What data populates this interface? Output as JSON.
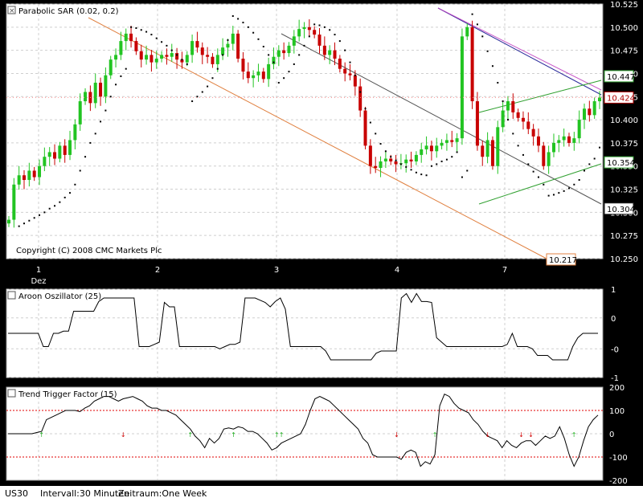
{
  "chart_data": [
    {
      "type": "candlestick",
      "title": "Parabolic SAR (0.02, 0.2)",
      "instrument": "US30",
      "copyright": "Copyright (C) 2008 CMC Markets Plc",
      "x_labels": [
        "1",
        "2",
        "3",
        "4",
        "7"
      ],
      "x_sublabel": "Dez",
      "y_ticks": [
        "10.525",
        "10.500",
        "10.475",
        "10.450",
        "10.425",
        "10.400",
        "10.375",
        "10.350",
        "10.325",
        "10.300",
        "10.275",
        "10.250"
      ],
      "ylim": [
        10.25,
        10.525
      ],
      "price_tags": [
        "10.447",
        "10.424",
        "10.354",
        "10.304",
        "10.217"
      ],
      "colors": {
        "up": "#22c422",
        "down": "#c80000",
        "sar": "#000000",
        "grid": "#bbbbbb",
        "last": "#b00000"
      },
      "closes": [
        10.292,
        10.33,
        10.34,
        10.335,
        10.345,
        10.338,
        10.35,
        10.36,
        10.365,
        10.358,
        10.372,
        10.362,
        10.378,
        10.395,
        10.42,
        10.43,
        10.418,
        10.44,
        10.425,
        10.448,
        10.465,
        10.47,
        10.485,
        10.493,
        10.485,
        10.474,
        10.465,
        10.47,
        10.462,
        10.466,
        10.47,
        10.468,
        10.472,
        10.465,
        10.462,
        10.47,
        10.485,
        10.478,
        10.47,
        10.468,
        10.46,
        10.47,
        10.478,
        10.482,
        10.493,
        10.466,
        10.452,
        10.445,
        10.448,
        10.452,
        10.444,
        10.46,
        10.468,
        10.475,
        10.472,
        10.48,
        10.49,
        10.498,
        10.5,
        10.497,
        10.492,
        10.48,
        10.47,
        10.475,
        10.466,
        10.455,
        10.45,
        10.448,
        10.436,
        10.41,
        10.372,
        10.35,
        10.348,
        10.355,
        10.358,
        10.355,
        10.352,
        10.353,
        10.357,
        10.355,
        10.362,
        10.368,
        10.372,
        10.366,
        10.372,
        10.375,
        10.378,
        10.376,
        10.38,
        10.49,
        10.5,
        10.42,
        10.372,
        10.36,
        10.378,
        10.35,
        10.392,
        10.41,
        10.42,
        10.408,
        10.402,
        10.398,
        10.39,
        10.382,
        10.372,
        10.35,
        10.365,
        10.375,
        10.378,
        10.382,
        10.375,
        10.38,
        10.4,
        10.412,
        10.405,
        10.42,
        10.424
      ],
      "sar": [
        null,
        null,
        10.285,
        10.288,
        10.291,
        10.294,
        10.297,
        10.3,
        10.304,
        10.307,
        10.311,
        10.316,
        10.321,
        10.33,
        10.345,
        10.36,
        10.375,
        10.385,
        10.398,
        10.41,
        10.425,
        10.438,
        10.447,
        10.455,
        10.5,
        10.499,
        10.497,
        10.495,
        10.492,
        10.488,
        10.484,
        10.48,
        10.475,
        10.47,
        10.465,
        10.46,
        10.42,
        10.425,
        10.43,
        10.436,
        10.445,
        10.455,
        10.47,
        10.486,
        10.512,
        10.509,
        10.505,
        10.5,
        10.494,
        10.487,
        10.479,
        10.47,
        10.462,
        10.44,
        10.445,
        10.452,
        10.46,
        10.47,
        10.48,
        10.49,
        10.503,
        10.502,
        10.5,
        10.497,
        10.492,
        10.485,
        10.475,
        10.462,
        10.448,
        10.43,
        10.412,
        10.397,
        10.385,
        10.374,
        10.366,
        10.36,
        10.356,
        10.352,
        10.349,
        10.346,
        10.343,
        10.341,
        10.34,
        10.35,
        10.352,
        10.355,
        10.357,
        10.36,
        10.365,
        10.338,
        10.345,
        10.514,
        10.503,
        10.49,
        10.474,
        10.458,
        10.44,
        10.42,
        10.4,
        10.385,
        10.372,
        10.362,
        10.352,
        10.344,
        10.338,
        10.33,
        10.318,
        10.319,
        10.321,
        10.323,
        10.326,
        10.33,
        10.335,
        10.345,
        10.352,
        10.358,
        10.37
      ],
      "sar_colors_note": "dotted black",
      "trendlines_color": [
        "#e08040",
        "#555555",
        "#2a2a9a",
        "#c040c0",
        "#30a030"
      ]
    },
    {
      "type": "line",
      "title": "Aroon Oszillator (25)",
      "y_ticks": [
        "1",
        "0",
        "-0",
        "-1"
      ],
      "ylim": [
        -1,
        1
      ],
      "values": [
        0,
        0,
        0,
        0,
        0,
        0,
        0,
        -0.3,
        -0.3,
        0,
        0,
        0.05,
        0.05,
        0.5,
        0.5,
        0.5,
        0.5,
        0.5,
        0.72,
        0.8,
        0.8,
        0.8,
        0.8,
        0.8,
        0.8,
        0.8,
        -0.3,
        -0.3,
        -0.3,
        -0.25,
        -0.2,
        0.7,
        0.6,
        0.6,
        -0.3,
        -0.3,
        -0.3,
        -0.3,
        -0.3,
        -0.3,
        -0.3,
        -0.3,
        -0.35,
        -0.3,
        -0.25,
        -0.25,
        -0.2,
        0.8,
        0.8,
        0.8,
        0.75,
        0.7,
        0.6,
        0.72,
        0.8,
        0.55,
        -0.3,
        -0.3,
        -0.3,
        -0.3,
        -0.3,
        -0.3,
        -0.3,
        -0.4,
        -0.6,
        -0.6,
        -0.6,
        -0.6,
        -0.6,
        -0.6,
        -0.6,
        -0.6,
        -0.6,
        -0.45,
        -0.4,
        -0.4,
        -0.4,
        -0.4,
        0.8,
        0.9,
        0.7,
        0.9,
        0.72,
        0.72,
        0.7,
        -0.1,
        -0.2,
        -0.3,
        -0.3,
        -0.3,
        -0.3,
        -0.3,
        -0.3,
        -0.3,
        -0.3,
        -0.3,
        -0.3,
        -0.3,
        -0.3,
        -0.25,
        0.0,
        -0.3,
        -0.3,
        -0.3,
        -0.35,
        -0.5,
        -0.5,
        -0.5,
        -0.6,
        -0.6,
        -0.6,
        -0.6,
        -0.3,
        -0.1,
        0.0,
        0.0,
        0.0,
        0.0
      ]
    },
    {
      "type": "line",
      "title": "Trend Trigger Factor (15)",
      "y_ticks": [
        "200",
        "100",
        "0",
        "-100",
        "-200"
      ],
      "ylim": [
        -200,
        200
      ],
      "levels": [
        100,
        -100
      ],
      "values": [
        0,
        0,
        0,
        0,
        0,
        0,
        5,
        10,
        60,
        70,
        80,
        90,
        100,
        100,
        100,
        95,
        110,
        120,
        140,
        150,
        160,
        160,
        150,
        140,
        150,
        155,
        160,
        150,
        140,
        120,
        110,
        110,
        100,
        100,
        90,
        80,
        60,
        40,
        20,
        -10,
        -30,
        -60,
        -20,
        -40,
        -20,
        20,
        25,
        20,
        30,
        25,
        10,
        10,
        0,
        -20,
        -40,
        -70,
        -60,
        -40,
        -30,
        -20,
        -10,
        0,
        40,
        100,
        150,
        160,
        150,
        140,
        120,
        100,
        80,
        60,
        40,
        20,
        -20,
        -40,
        -90,
        -100,
        -100,
        -100,
        -100,
        -100,
        -110,
        -80,
        -70,
        -80,
        -140,
        -120,
        -130,
        -90,
        120,
        170,
        160,
        130,
        110,
        100,
        90,
        60,
        40,
        10,
        -10,
        -20,
        -30,
        -60,
        -30,
        -50,
        -60,
        -40,
        -30,
        -30,
        -50,
        -30,
        -10,
        -20,
        -10,
        30,
        -20,
        -90,
        -140,
        -100,
        -30,
        30,
        60,
        80
      ],
      "signals": [
        {
          "i": 7,
          "dir": "up"
        },
        {
          "i": 24,
          "dir": "down"
        },
        {
          "i": 38,
          "dir": "up"
        },
        {
          "i": 47,
          "dir": "up"
        },
        {
          "i": 56,
          "dir": "up"
        },
        {
          "i": 57,
          "dir": "up"
        },
        {
          "i": 81,
          "dir": "down"
        },
        {
          "i": 89,
          "dir": "up"
        },
        {
          "i": 100,
          "dir": "down"
        },
        {
          "i": 107,
          "dir": "down"
        },
        {
          "i": 109,
          "dir": "down"
        },
        {
          "i": 118,
          "dir": "up"
        }
      ]
    }
  ],
  "statusbar": {
    "symbol": "US30",
    "interval": "Intervall:30 Minuten",
    "period": "Zeitraum:One Week"
  }
}
